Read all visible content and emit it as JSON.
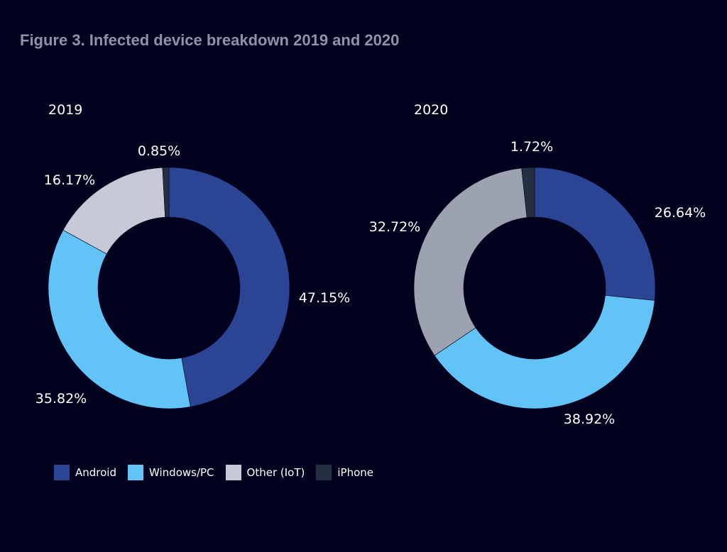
{
  "title": "Figure 3. Infected device breakdown 2019 and 2020",
  "colors": {
    "background": "#02021f",
    "Android": "#2b4494",
    "Windows/PC": "#62c3f7",
    "Other (IoT) 2019": "#c6cad6",
    "Other (IoT) 2020": "#9ca2b0",
    "iPhone": "#243042"
  },
  "legend": [
    {
      "label": "Android",
      "color": "#2b4494"
    },
    {
      "label": "Windows/PC",
      "color": "#62c3f7"
    },
    {
      "label": "Other (IoT)",
      "color": "#c6cad6"
    },
    {
      "label": "iPhone",
      "color": "#243042"
    }
  ],
  "chart_data": [
    {
      "type": "pie",
      "title": "2019",
      "categories": [
        "Android",
        "Windows/PC",
        "Other (IoT)",
        "iPhone"
      ],
      "values": [
        47.15,
        35.82,
        16.17,
        0.85
      ],
      "labels": [
        "47.15%",
        "35.82%",
        "16.17%",
        "0.85%"
      ],
      "colors": [
        "#2b4494",
        "#62c3f7",
        "#c6cad6",
        "#243042"
      ],
      "legend": "bottom"
    },
    {
      "type": "pie",
      "title": "2020",
      "categories": [
        "Android",
        "Windows/PC",
        "Other (IoT)",
        "iPhone"
      ],
      "values": [
        26.64,
        38.92,
        32.72,
        1.72
      ],
      "labels": [
        "26.64%",
        "38.92%",
        "32.72%",
        "1.72%"
      ],
      "colors": [
        "#2b4494",
        "#62c3f7",
        "#9ca2b0",
        "#243042"
      ],
      "legend": "bottom"
    }
  ]
}
